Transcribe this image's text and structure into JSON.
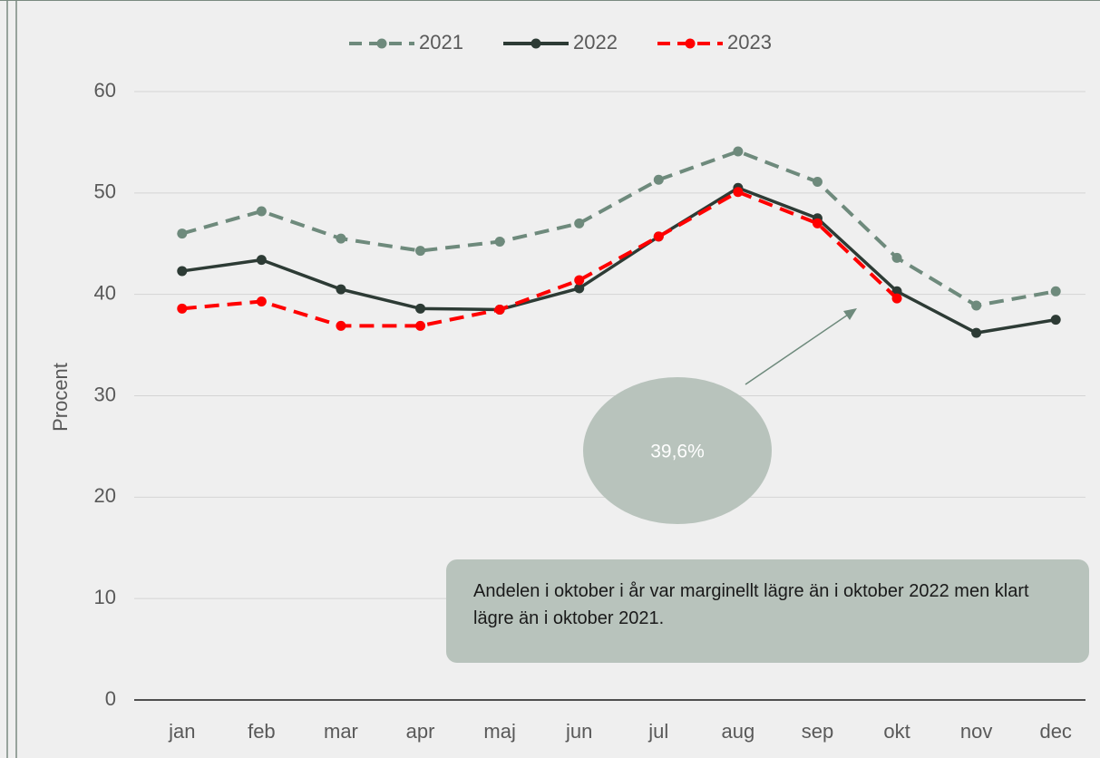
{
  "chart_data": {
    "type": "line",
    "y_label": "Procent",
    "categories": [
      "jan",
      "feb",
      "mar",
      "apr",
      "maj",
      "jun",
      "jul",
      "aug",
      "sep",
      "okt",
      "nov",
      "dec"
    ],
    "series": [
      {
        "name": "2021",
        "color": "#6e8a7c",
        "dash": true,
        "values": [
          46.0,
          48.2,
          45.5,
          44.3,
          45.2,
          47.0,
          51.3,
          54.1,
          51.1,
          43.6,
          38.9,
          40.3
        ]
      },
      {
        "name": "2022",
        "color": "#2d3b35",
        "dash": false,
        "values": [
          42.3,
          43.4,
          40.5,
          38.6,
          38.5,
          40.6,
          45.7,
          50.5,
          47.5,
          40.3,
          36.2,
          37.5
        ]
      },
      {
        "name": "2023",
        "color": "#ff0000",
        "dash": true,
        "values": [
          38.6,
          39.3,
          36.9,
          36.9,
          38.5,
          41.4,
          45.7,
          50.1,
          47.0,
          39.6,
          null,
          null
        ]
      }
    ],
    "ylim": [
      0,
      60
    ],
    "yticks": [
      0,
      10,
      20,
      30,
      40,
      50,
      60
    ],
    "grid": true,
    "legend": "top",
    "annotations": {
      "callout": "39,6%",
      "note": "Andelen i oktober i år var marginellt lägre än i oktober 2022 men klart lägre än i oktober 2021."
    }
  }
}
